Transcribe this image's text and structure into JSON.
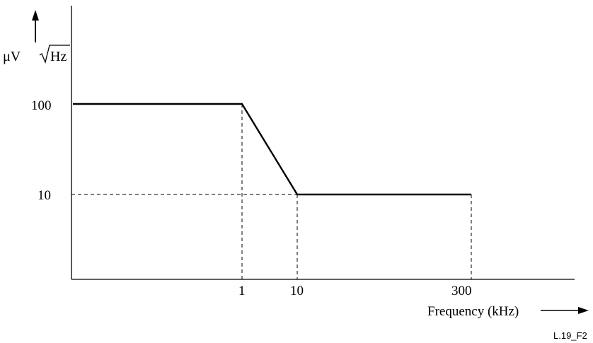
{
  "chart_data": {
    "type": "line",
    "title": "",
    "ylabel": {
      "prefix": "μV",
      "radicand": "Hz"
    },
    "xlabel": "Frequency (kHz)",
    "figure_id": "L.19_F2",
    "x_scale": "log",
    "y_scale": "log",
    "y_ticks": [
      "100",
      "10"
    ],
    "x_ticks": [
      "1",
      "10",
      "300"
    ],
    "series": [
      {
        "x": [
          null,
          1,
          10,
          300
        ],
        "y": [
          100,
          100,
          10,
          10
        ]
      }
    ],
    "guide_lines": "dashed",
    "colors": {
      "line": "#000000",
      "axis": "#000000"
    }
  }
}
